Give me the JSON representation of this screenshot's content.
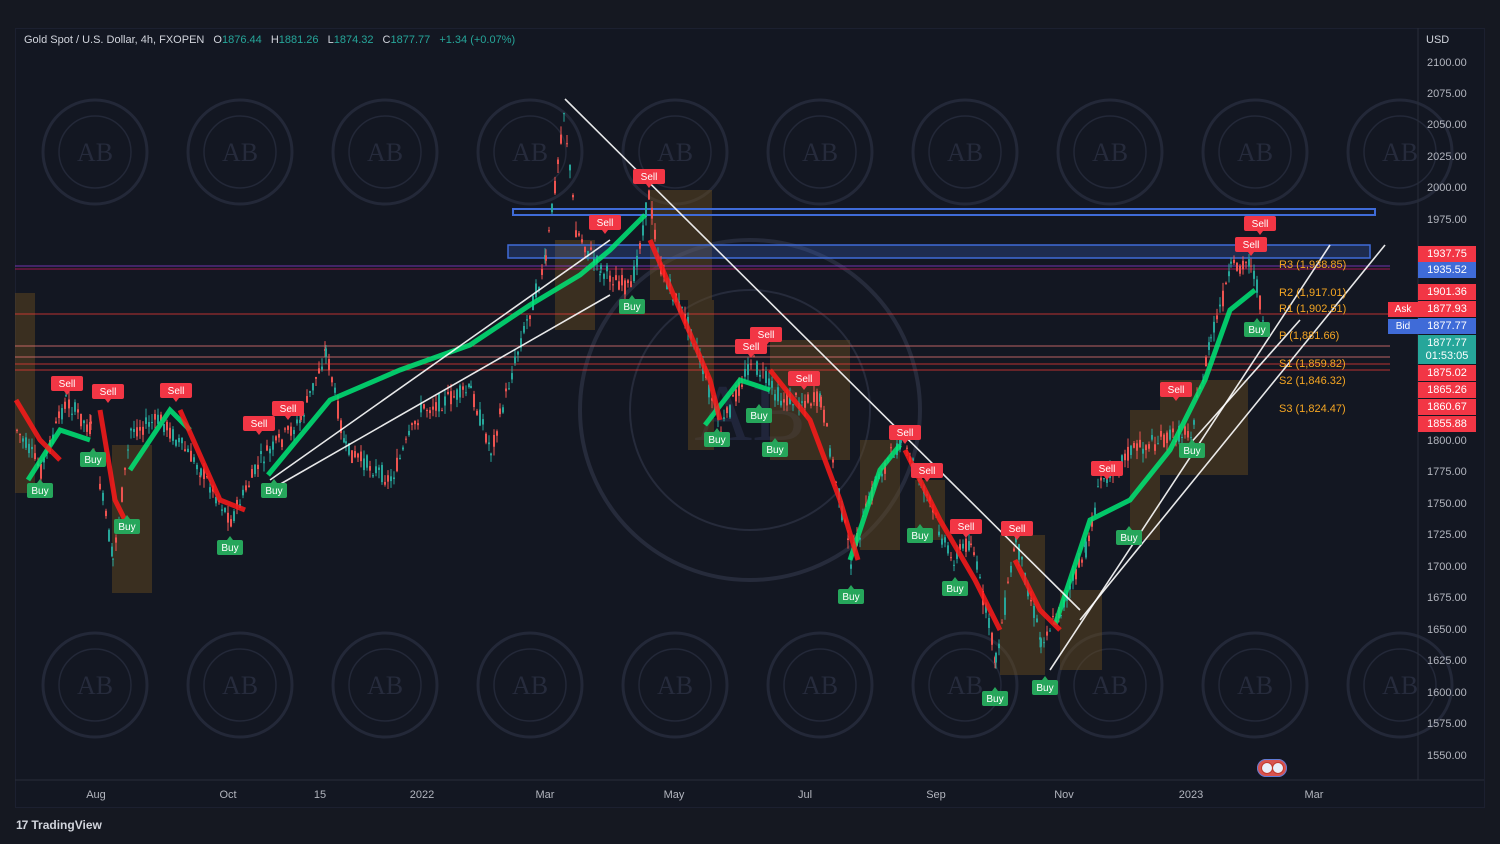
{
  "header": {
    "symbol": "Gold Spot / U.S. Dollar, 4h, FXOPEN",
    "open_label": "O",
    "open": "1876.44",
    "high_label": "H",
    "high": "1881.26",
    "low_label": "L",
    "low": "1874.32",
    "close_label": "C",
    "close": "1877.77",
    "change": "+1.34 (+0.07%)"
  },
  "currency": "USD",
  "brand": "TradingView",
  "x_axis_labels": [
    "Aug",
    "Oct",
    "15",
    "2022",
    "Mar",
    "May",
    "Jul",
    "Sep",
    "Nov",
    "2023",
    "Mar"
  ],
  "y_axis_labels": [
    "2100.00",
    "2075.00",
    "2050.00",
    "2025.00",
    "2000.00",
    "1975.00",
    "1800.00",
    "1775.00",
    "1750.00",
    "1725.00",
    "1700.00",
    "1675.00",
    "1650.00",
    "1625.00",
    "1600.00",
    "1575.00",
    "1550.00"
  ],
  "price_tags": [
    "1937.75",
    "1935.52",
    "1901.36",
    "1877.93",
    "1877.77",
    "1875.02",
    "1865.26",
    "1860.67",
    "1855.88"
  ],
  "ask_label": "Ask",
  "bid_label": "Bid",
  "bid_value": "1877.77",
  "countdown": "01:53:05",
  "pivots": {
    "r3": "R3 (1,938.85)",
    "r2": "R2 (1,917.01)",
    "r1": "R1 (1,902.51)",
    "p": "P (1,881.66)",
    "s1": "S1 (1,859.82)",
    "s2": "S2 (1,846.32)",
    "s3": "S3 (1,824.47)"
  },
  "signal_labels": {
    "sell": "Sell",
    "buy": "Buy"
  },
  "watermark_text": "AB",
  "colors": {
    "background": "#131722",
    "up": "#26a69a",
    "down": "#ef5350",
    "sell_tag": "#f23645",
    "buy_tag": "#26a65b",
    "trend_green": "#00e676",
    "trend_red": "#ff1a1a",
    "zone_blue": "#3f6bd8",
    "pivot": "#f5a623",
    "box": "#6b4e1f"
  },
  "chart_data": {
    "type": "candlestick",
    "instrument": "Gold Spot / U.S. Dollar",
    "timeframe": "4h",
    "x_range": [
      "2021-07",
      "2023-03"
    ],
    "y_range": [
      1550,
      2100
    ],
    "approx_path": [
      {
        "date": "2021-07",
        "price": 1800
      },
      {
        "date": "2021-08",
        "price": 1760
      },
      {
        "date": "2021-08",
        "price": 1690
      },
      {
        "date": "2021-09",
        "price": 1810
      },
      {
        "date": "2021-10",
        "price": 1750
      },
      {
        "date": "2021-11",
        "price": 1860
      },
      {
        "date": "2021-12",
        "price": 1780
      },
      {
        "date": "2022-01",
        "price": 1820
      },
      {
        "date": "2022-02",
        "price": 1900
      },
      {
        "date": "2022-03",
        "price": 2070
      },
      {
        "date": "2022-03",
        "price": 1920
      },
      {
        "date": "2022-04",
        "price": 1998
      },
      {
        "date": "2022-05",
        "price": 1810
      },
      {
        "date": "2022-06",
        "price": 1870
      },
      {
        "date": "2022-07",
        "price": 1700
      },
      {
        "date": "2022-08",
        "price": 1800
      },
      {
        "date": "2022-09",
        "price": 1620
      },
      {
        "date": "2022-10",
        "price": 1730
      },
      {
        "date": "2022-11",
        "price": 1620
      },
      {
        "date": "2022-12",
        "price": 1800
      },
      {
        "date": "2023-01",
        "price": 1950
      },
      {
        "date": "2023-02",
        "price": 1878
      }
    ]
  }
}
